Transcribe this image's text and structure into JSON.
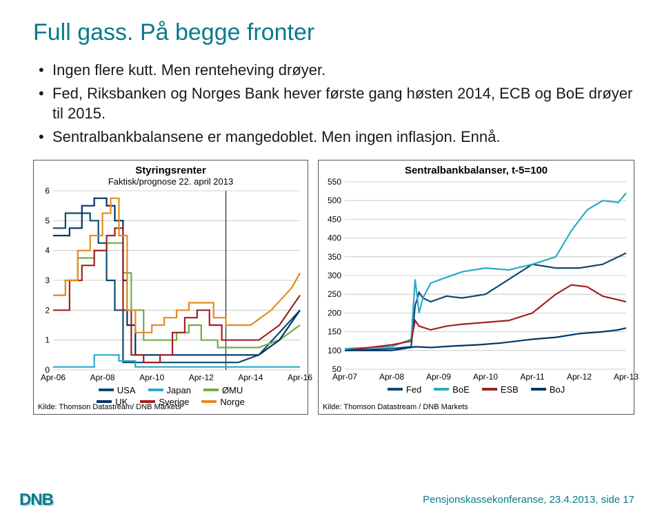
{
  "title": {
    "text": "Full gass. På begge fronter",
    "color": "#0a7a8a"
  },
  "bullets": [
    "Ingen flere kutt. Men renteheving drøyer.",
    "Fed, Riksbanken og Norges Bank hever første gang høsten 2014, ECB og BoE drøyer til 2015.",
    "Sentralbankbalansene er mangedoblet. Men ingen inflasjon. Ennå."
  ],
  "leftChart": {
    "title": "Styringsrenter",
    "subtitle": "Faktisk/prognose 22. april 2013",
    "ylim": [
      0,
      6
    ],
    "ytick_step": 1,
    "xticks": [
      "Apr-06",
      "Apr-08",
      "Apr-10",
      "Apr-12",
      "Apr-14",
      "Apr-16"
    ],
    "xstep": 24,
    "forecast_x": 84,
    "grid_color": "#bfbfbf",
    "series": [
      {
        "name": "USA",
        "color": "#0a4a6e",
        "pts": [
          [
            0,
            4.75
          ],
          [
            6,
            5.25
          ],
          [
            12,
            5.25
          ],
          [
            18,
            5.0
          ],
          [
            22,
            4.25
          ],
          [
            26,
            3.0
          ],
          [
            30,
            2.0
          ],
          [
            34,
            0.25
          ],
          [
            40,
            0.25
          ],
          [
            84,
            0.25
          ],
          [
            90,
            0.25
          ],
          [
            100,
            0.5
          ],
          [
            110,
            1.25
          ],
          [
            120,
            2.0
          ]
        ]
      },
      {
        "name": "Japan",
        "color": "#2aa9c9",
        "pts": [
          [
            0,
            0.1
          ],
          [
            20,
            0.5
          ],
          [
            28,
            0.5
          ],
          [
            32,
            0.3
          ],
          [
            40,
            0.1
          ],
          [
            84,
            0.1
          ],
          [
            120,
            0.1
          ]
        ]
      },
      {
        "name": "ØMU",
        "color": "#6fac46",
        "pts": [
          [
            0,
            2.5
          ],
          [
            6,
            3.0
          ],
          [
            12,
            3.75
          ],
          [
            20,
            4.0
          ],
          [
            26,
            4.25
          ],
          [
            30,
            4.25
          ],
          [
            34,
            3.25
          ],
          [
            38,
            2.0
          ],
          [
            44,
            1.0
          ],
          [
            54,
            1.0
          ],
          [
            60,
            1.25
          ],
          [
            66,
            1.5
          ],
          [
            72,
            1.0
          ],
          [
            80,
            0.75
          ],
          [
            84,
            0.75
          ],
          [
            100,
            0.75
          ],
          [
            110,
            1.0
          ],
          [
            120,
            1.5
          ]
        ]
      },
      {
        "name": "UK",
        "color": "#003366",
        "pts": [
          [
            0,
            4.5
          ],
          [
            8,
            4.75
          ],
          [
            14,
            5.5
          ],
          [
            20,
            5.75
          ],
          [
            26,
            5.5
          ],
          [
            30,
            5.0
          ],
          [
            34,
            3.0
          ],
          [
            36,
            1.5
          ],
          [
            40,
            0.5
          ],
          [
            84,
            0.5
          ],
          [
            100,
            0.5
          ],
          [
            110,
            1.0
          ],
          [
            120,
            2.0
          ]
        ]
      },
      {
        "name": "Sverige",
        "color": "#a02020",
        "pts": [
          [
            0,
            2.0
          ],
          [
            8,
            3.0
          ],
          [
            14,
            3.5
          ],
          [
            20,
            4.0
          ],
          [
            26,
            4.5
          ],
          [
            30,
            4.75
          ],
          [
            34,
            2.0
          ],
          [
            38,
            0.5
          ],
          [
            44,
            0.25
          ],
          [
            52,
            0.5
          ],
          [
            58,
            1.25
          ],
          [
            64,
            1.75
          ],
          [
            70,
            2.0
          ],
          [
            76,
            1.5
          ],
          [
            82,
            1.0
          ],
          [
            84,
            1.0
          ],
          [
            100,
            1.0
          ],
          [
            110,
            1.5
          ],
          [
            120,
            2.5
          ]
        ]
      },
      {
        "name": "Norge",
        "color": "#e58a1f",
        "pts": [
          [
            0,
            2.5
          ],
          [
            6,
            3.0
          ],
          [
            12,
            4.0
          ],
          [
            18,
            4.5
          ],
          [
            24,
            5.25
          ],
          [
            28,
            5.75
          ],
          [
            32,
            4.5
          ],
          [
            36,
            2.0
          ],
          [
            40,
            1.25
          ],
          [
            48,
            1.5
          ],
          [
            54,
            1.75
          ],
          [
            60,
            2.0
          ],
          [
            66,
            2.25
          ],
          [
            72,
            2.25
          ],
          [
            78,
            1.75
          ],
          [
            84,
            1.5
          ],
          [
            96,
            1.5
          ],
          [
            106,
            2.0
          ],
          [
            116,
            2.75
          ],
          [
            120,
            3.25
          ]
        ]
      }
    ],
    "legend": [
      {
        "label": "USA",
        "color": "#0a4a6e"
      },
      {
        "label": "Japan",
        "color": "#2aa9c9"
      },
      {
        "label": "ØMU",
        "color": "#6fac46"
      },
      {
        "label": "UK",
        "color": "#003366"
      },
      {
        "label": "Sverige",
        "color": "#a02020"
      },
      {
        "label": "Norge",
        "color": "#e58a1f"
      }
    ],
    "source": "Kilde: Thomson Datastream/ DNB Markets"
  },
  "rightChart": {
    "title": "Sentralbankbalanser, t-5=100",
    "ylim": [
      50,
      550
    ],
    "ytick_step": 50,
    "xticks": [
      "Apr-07",
      "Apr-08",
      "Apr-09",
      "Apr-10",
      "Apr-11",
      "Apr-12",
      "Apr-13"
    ],
    "grid_color": "#bfbfbf",
    "series": [
      {
        "name": "Fed",
        "color": "#0a4a6e",
        "pts": [
          [
            0,
            100
          ],
          [
            12,
            105
          ],
          [
            17,
            110
          ],
          [
            18,
            220
          ],
          [
            19,
            255
          ],
          [
            20,
            240
          ],
          [
            22,
            230
          ],
          [
            26,
            245
          ],
          [
            30,
            240
          ],
          [
            36,
            250
          ],
          [
            42,
            290
          ],
          [
            48,
            330
          ],
          [
            54,
            320
          ],
          [
            60,
            320
          ],
          [
            66,
            330
          ],
          [
            72,
            360
          ]
        ]
      },
      {
        "name": "BoE",
        "color": "#2aa9c9",
        "pts": [
          [
            0,
            105
          ],
          [
            12,
            110
          ],
          [
            17,
            130
          ],
          [
            18,
            290
          ],
          [
            19,
            200
          ],
          [
            20,
            240
          ],
          [
            22,
            280
          ],
          [
            26,
            295
          ],
          [
            30,
            310
          ],
          [
            36,
            320
          ],
          [
            42,
            315
          ],
          [
            48,
            330
          ],
          [
            54,
            350
          ],
          [
            58,
            420
          ],
          [
            62,
            475
          ],
          [
            66,
            500
          ],
          [
            70,
            495
          ],
          [
            72,
            520
          ]
        ]
      },
      {
        "name": "ESB",
        "color": "#a02020",
        "pts": [
          [
            0,
            100
          ],
          [
            12,
            115
          ],
          [
            17,
            125
          ],
          [
            18,
            180
          ],
          [
            19,
            165
          ],
          [
            22,
            155
          ],
          [
            26,
            165
          ],
          [
            30,
            170
          ],
          [
            36,
            175
          ],
          [
            42,
            180
          ],
          [
            48,
            200
          ],
          [
            54,
            250
          ],
          [
            58,
            275
          ],
          [
            62,
            270
          ],
          [
            66,
            245
          ],
          [
            70,
            235
          ],
          [
            72,
            230
          ]
        ]
      },
      {
        "name": "BoJ",
        "color": "#003366",
        "pts": [
          [
            0,
            100
          ],
          [
            12,
            100
          ],
          [
            18,
            110
          ],
          [
            22,
            108
          ],
          [
            28,
            112
          ],
          [
            34,
            115
          ],
          [
            40,
            120
          ],
          [
            48,
            130
          ],
          [
            54,
            135
          ],
          [
            60,
            145
          ],
          [
            66,
            150
          ],
          [
            70,
            155
          ],
          [
            72,
            160
          ]
        ]
      }
    ],
    "legend": [
      {
        "label": "Fed",
        "color": "#0a4a6e"
      },
      {
        "label": "BoE",
        "color": "#2aa9c9"
      },
      {
        "label": "ESB",
        "color": "#a02020"
      },
      {
        "label": "BoJ",
        "color": "#003366"
      }
    ],
    "source": "Kilde: Thomson Datastream / DNB Markets"
  },
  "footer": {
    "text": "Pensjonskassekonferanse, 23.4.2013, side 17",
    "color": "#0a7a8a"
  },
  "logo": {
    "text": "DNB",
    "fg": "#0a7a8a",
    "shadow": "#b8d8dd"
  }
}
